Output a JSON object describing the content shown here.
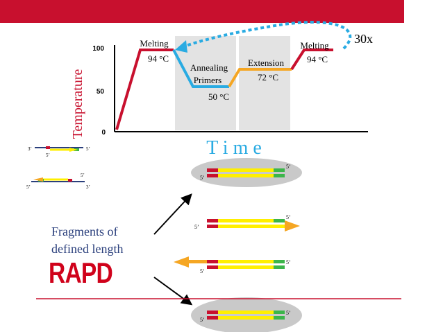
{
  "graph": {
    "y_axis_title": "Temperature",
    "y_ticks": [
      "0",
      "50",
      "100"
    ],
    "x_axis_title": "T i m e",
    "cycle_count": "30x",
    "stages": {
      "melting1_title": "Melting",
      "melting1_temp": "94 °C",
      "annealing_title1": "Annealing",
      "annealing_title2": "Primers",
      "annealing_temp": "50 °C",
      "extension_title": "Extension",
      "extension_temp": "72 °C",
      "melting2_title": "Melting",
      "melting2_temp": "94 °C"
    }
  },
  "strand_labels": {
    "five_prime": "5’",
    "three_prime": "3’"
  },
  "fragments_text_line1": "Fragments of",
  "fragments_text_line2": "defined length",
  "rapd_label": "RAPD",
  "colors": {
    "red": "#c8102e",
    "blue": "#29abe2",
    "orange": "#f5a623",
    "yellow": "#ffef00",
    "green": "#3bb54a",
    "axis": "#000000",
    "text_blue": "#2a3f7c"
  }
}
